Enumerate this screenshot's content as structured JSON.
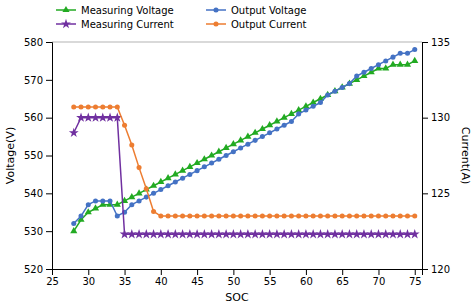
{
  "chart_data": {
    "type": "line",
    "xlabel": "SOC",
    "ylabel": "Voltage(V)",
    "y2label": "Current(A)",
    "x": [
      28,
      29,
      30,
      31,
      32,
      33,
      34,
      35,
      36,
      37,
      38,
      39,
      40,
      41,
      42,
      43,
      44,
      45,
      46,
      47,
      48,
      49,
      50,
      51,
      52,
      53,
      54,
      55,
      56,
      57,
      58,
      59,
      60,
      61,
      62,
      63,
      64,
      65,
      66,
      67,
      68,
      69,
      70,
      71,
      72,
      73,
      74,
      75
    ],
    "xlim": [
      25,
      76
    ],
    "xticks": [
      25,
      30,
      35,
      40,
      45,
      50,
      55,
      60,
      65,
      70,
      75
    ],
    "ylim": [
      520,
      580
    ],
    "yticks": [
      520,
      530,
      540,
      550,
      560,
      570,
      580
    ],
    "y2lim": [
      120,
      135
    ],
    "y2ticks": [
      120,
      125,
      130,
      135
    ],
    "legend": "upper left",
    "series": [
      {
        "name": "Measuring Voltage",
        "color": "#22aa22",
        "marker": "triangle",
        "values": [
          530,
          533,
          535,
          536,
          537,
          537,
          537,
          538,
          539,
          540,
          541,
          542,
          543,
          544,
          545,
          546,
          547,
          548,
          549,
          550,
          551,
          552,
          553,
          554,
          555,
          556,
          557,
          558,
          559,
          560,
          561,
          562,
          563,
          564,
          565,
          566,
          567,
          568,
          569,
          570,
          571,
          572,
          573,
          573,
          574,
          574,
          574,
          575
        ]
      },
      {
        "name": "Output Voltage",
        "color": "#4472c4",
        "marker": "circle",
        "values": [
          532,
          534,
          537,
          538,
          538,
          538,
          534,
          535,
          537,
          538,
          539,
          540,
          541,
          542,
          543,
          544,
          545,
          546,
          547,
          548,
          549,
          550,
          551,
          552,
          553,
          554,
          555,
          556,
          557,
          558,
          559,
          561,
          562,
          563,
          564,
          566,
          567,
          568,
          569,
          571,
          572,
          573,
          574,
          575,
          576,
          577,
          577,
          578
        ]
      },
      {
        "name": "Measuring Current",
        "color": "#7030a0",
        "marker": "star",
        "axis": "y2",
        "values": [
          129.0,
          130.0,
          130.0,
          130.0,
          130.0,
          130.0,
          130.0,
          122.3,
          122.3,
          122.3,
          122.3,
          122.3,
          122.3,
          122.3,
          122.3,
          122.3,
          122.3,
          122.3,
          122.3,
          122.3,
          122.3,
          122.3,
          122.3,
          122.3,
          122.3,
          122.3,
          122.3,
          122.3,
          122.3,
          122.3,
          122.3,
          122.3,
          122.3,
          122.3,
          122.3,
          122.3,
          122.3,
          122.3,
          122.3,
          122.3,
          122.3,
          122.3,
          122.3,
          122.3,
          122.3,
          122.3,
          122.3,
          122.3
        ]
      },
      {
        "name": "Output Current",
        "color": "#ed7d31",
        "marker": "circle",
        "axis": "y2",
        "values": [
          130.7,
          130.7,
          130.7,
          130.7,
          130.7,
          130.7,
          130.7,
          129.5,
          128.2,
          126.7,
          125.3,
          123.8,
          123.5,
          123.5,
          123.5,
          123.5,
          123.5,
          123.5,
          123.5,
          123.5,
          123.5,
          123.5,
          123.5,
          123.5,
          123.5,
          123.5,
          123.5,
          123.5,
          123.5,
          123.5,
          123.5,
          123.5,
          123.5,
          123.5,
          123.5,
          123.5,
          123.5,
          123.5,
          123.5,
          123.5,
          123.5,
          123.5,
          123.5,
          123.5,
          123.5,
          123.5,
          123.5,
          123.5
        ]
      }
    ]
  }
}
